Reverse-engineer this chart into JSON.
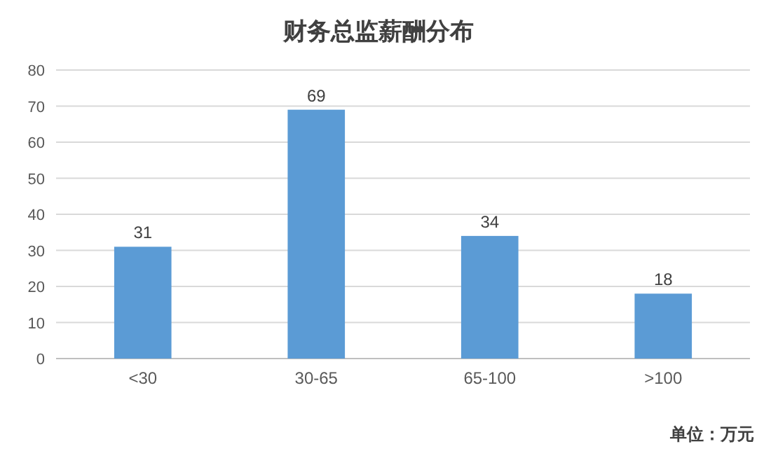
{
  "chart_data": {
    "type": "bar",
    "title": "财务总监薪酬分布",
    "categories": [
      "<30",
      "30-65",
      "65-100",
      ">100"
    ],
    "values": [
      31,
      69,
      34,
      18
    ],
    "color": "#5b9bd5",
    "ylim": [
      0,
      80
    ],
    "yticks": [
      0,
      10,
      20,
      30,
      40,
      50,
      60,
      70,
      80
    ],
    "grid": "y",
    "data_labels": true,
    "annotations": [
      "单位：万元"
    ]
  }
}
